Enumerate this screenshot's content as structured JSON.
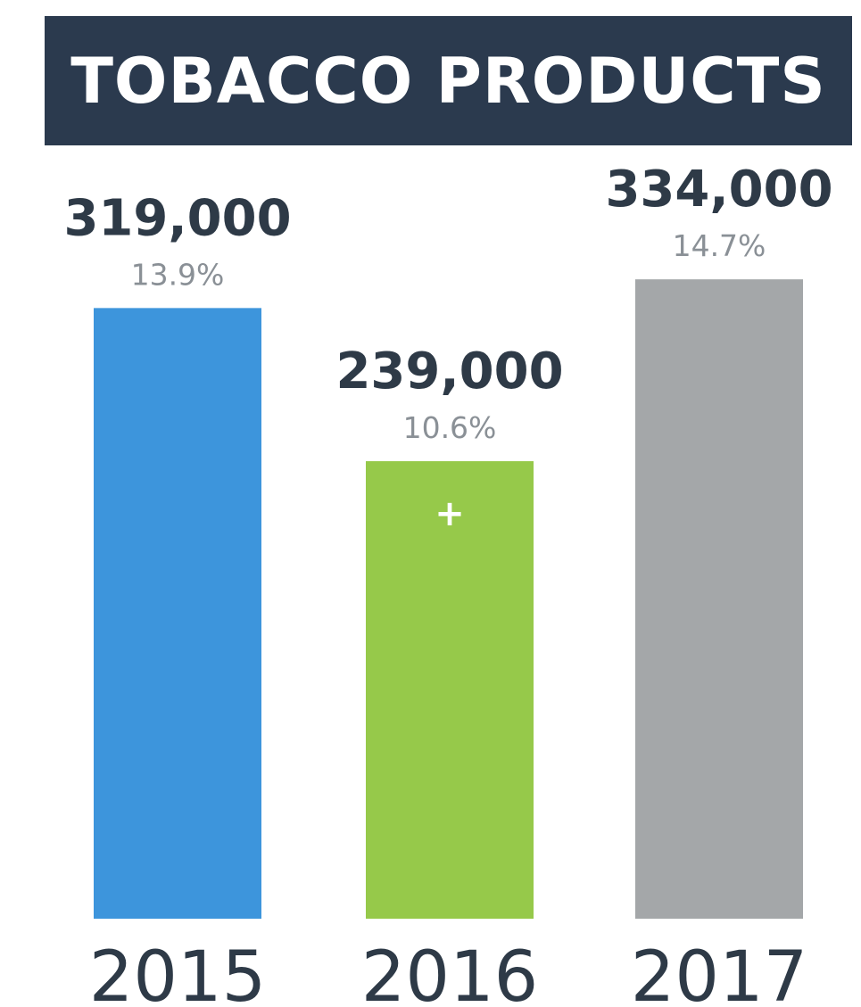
{
  "chart_data": {
    "type": "bar",
    "title": "TOBACCO PRODUCTS",
    "categories": [
      "2015",
      "2016",
      "2017"
    ],
    "values": [
      319000,
      239000,
      334000
    ],
    "value_labels": [
      "319,000",
      "239,000",
      "334,000"
    ],
    "percent_labels": [
      "13.9%",
      "10.6%",
      "14.7%"
    ],
    "colors": [
      "#3d95dc",
      "#96c94a",
      "#a4a7a9"
    ],
    "marker": {
      "category": "2016",
      "symbol": "+"
    },
    "xlabel": "",
    "ylabel": "",
    "grid": false
  }
}
